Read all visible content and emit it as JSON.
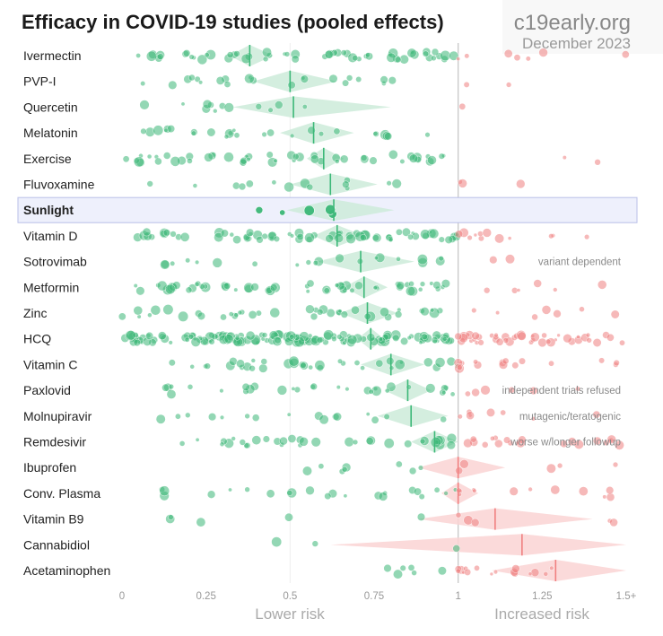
{
  "header": {
    "title": "Efficacy in COVID-19 studies (pooled effects)",
    "site": "c19early.org",
    "date": "December 2023"
  },
  "colors": {
    "benefit": "#3cb878",
    "harm": "#f08080",
    "diamond_benefit": "#cdebd9",
    "diamond_harm": "#fad4d4",
    "highlight_bg": "#eef0fc",
    "highlight_border": "#b9bfe8",
    "axis_text": "#999999",
    "note_text": "#8a8a8a"
  },
  "chart_data": {
    "type": "scatter",
    "xlim": [
      0,
      1.5
    ],
    "x_ticks": [
      "0",
      "0.25",
      "0.5",
      "0.75",
      "1",
      "1.25",
      "1.5+"
    ],
    "x_tick_values": [
      0,
      0.25,
      0.5,
      0.75,
      1,
      1.25,
      1.5
    ],
    "reference_lines": [
      0.5,
      1
    ],
    "axis_captions": {
      "benefit": "Lower risk",
      "harm": "Increased risk"
    },
    "highlighted": "Sunlight",
    "rows": [
      {
        "name": "Ivermectin",
        "pooled": 0.38,
        "ci": [
          0.32,
          0.45
        ],
        "n": 58,
        "spread": [
          0.0,
          1.0
        ],
        "harm_n": 7
      },
      {
        "name": "PVP-I",
        "pooled": 0.5,
        "ci": [
          0.39,
          0.64
        ],
        "n": 22,
        "spread": [
          0.05,
          0.95
        ],
        "harm_n": 2
      },
      {
        "name": "Quercetin",
        "pooled": 0.51,
        "ci": [
          0.33,
          0.8
        ],
        "n": 12,
        "spread": [
          0.05,
          0.55
        ],
        "harm_n": 1
      },
      {
        "name": "Melatonin",
        "pooled": 0.57,
        "ci": [
          0.47,
          0.69
        ],
        "n": 26,
        "spread": [
          0.06,
          0.95
        ],
        "harm_n": 0
      },
      {
        "name": "Exercise",
        "pooled": 0.6,
        "ci": [
          0.55,
          0.66
        ],
        "n": 50,
        "spread": [
          0.0,
          1.0
        ],
        "harm_n": 2
      },
      {
        "name": "Fluvoxamine",
        "pooled": 0.62,
        "ci": [
          0.5,
          0.76
        ],
        "n": 14,
        "spread": [
          0.05,
          0.85
        ],
        "harm_n": 3
      },
      {
        "name": "Sunlight",
        "pooled": 0.63,
        "ci": [
          0.49,
          0.81
        ],
        "n": 5,
        "spread": [
          0.36,
          0.77
        ],
        "harm_n": 0
      },
      {
        "name": "Vitamin D",
        "pooled": 0.64,
        "ci": [
          0.57,
          0.72
        ],
        "n": 70,
        "spread": [
          0.0,
          1.0
        ],
        "harm_n": 12
      },
      {
        "name": "Sotrovimab",
        "pooled": 0.71,
        "ci": [
          0.58,
          0.87
        ],
        "n": 20,
        "spread": [
          0.1,
          0.95
        ],
        "harm_n": 2,
        "note": "variant dependent"
      },
      {
        "name": "Metformin",
        "pooled": 0.72,
        "ci": [
          0.66,
          0.79
        ],
        "n": 60,
        "spread": [
          0.03,
          1.0
        ],
        "harm_n": 6
      },
      {
        "name": "Zinc",
        "pooled": 0.73,
        "ci": [
          0.65,
          0.82
        ],
        "n": 40,
        "spread": [
          0.0,
          1.0
        ],
        "harm_n": 7
      },
      {
        "name": "HCQ",
        "pooled": 0.74,
        "ci": [
          0.7,
          0.78
        ],
        "n": 150,
        "spread": [
          0.0,
          1.0
        ],
        "harm_n": 45
      },
      {
        "name": "Vitamin C",
        "pooled": 0.8,
        "ci": [
          0.71,
          0.9
        ],
        "n": 36,
        "spread": [
          0.1,
          1.0
        ],
        "harm_n": 16
      },
      {
        "name": "Paxlovid",
        "pooled": 0.85,
        "ci": [
          0.78,
          0.92
        ],
        "n": 30,
        "spread": [
          0.04,
          1.0
        ],
        "harm_n": 6,
        "note": "independent trials refused"
      },
      {
        "name": "Molnupiravir",
        "pooled": 0.86,
        "ci": [
          0.76,
          0.97
        ],
        "n": 16,
        "spread": [
          0.1,
          1.0
        ],
        "harm_n": 8,
        "note": "mutagenic/teratogenic"
      },
      {
        "name": "Remdesivir",
        "pooled": 0.93,
        "ci": [
          0.86,
          1.0
        ],
        "n": 34,
        "spread": [
          0.13,
          1.0
        ],
        "harm_n": 20,
        "note": "worse w/longer followup"
      },
      {
        "name": "Ibuprofen",
        "pooled": 1.0,
        "ci": [
          0.88,
          1.14
        ],
        "n": 8,
        "spread": [
          0.48,
          1.0
        ],
        "harm_n": 5
      },
      {
        "name": "Conv. Plasma",
        "pooled": 1.0,
        "ci": [
          0.95,
          1.06
        ],
        "n": 22,
        "spread": [
          0.1,
          1.0
        ],
        "harm_n": 12
      },
      {
        "name": "Vitamin B9",
        "pooled": 1.11,
        "ci": [
          0.88,
          1.4
        ],
        "n": 5,
        "spread": [
          0.12,
          1.0
        ],
        "harm_n": 5
      },
      {
        "name": "Cannabidiol",
        "pooled": 1.19,
        "ci": [
          0.62,
          1.6
        ],
        "n": 3,
        "spread": [
          0.44,
          1.0
        ],
        "harm_n": 0
      },
      {
        "name": "Acetaminophen",
        "pooled": 1.29,
        "ci": [
          1.1,
          1.5
        ],
        "n": 6,
        "spread": [
          0.75,
          1.0
        ],
        "harm_n": 16
      }
    ]
  }
}
